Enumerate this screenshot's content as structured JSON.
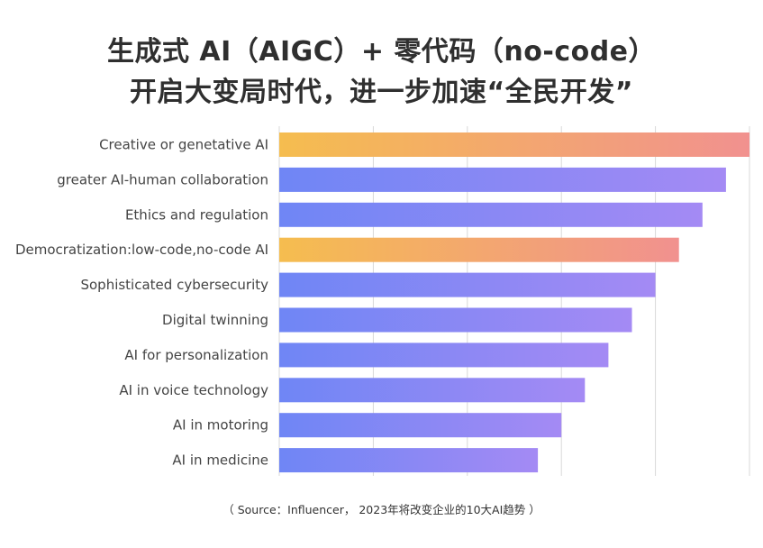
{
  "title_lines": [
    "生成式 AI（AIGC）+ 零代码（no-code）",
    "开启大变局时代，进一步加速“全民开发”"
  ],
  "source": "（ Source：Influencer， 2023年将改变企业的10大AI趋势 ）",
  "colors": {
    "highlight_start": "#f5bd4f",
    "highlight_end": "#f1918f",
    "normal_start": "#6f86f5",
    "normal_end": "#a48af4",
    "gridline": "#d9d9d9"
  },
  "chart_data": {
    "type": "bar",
    "orientation": "horizontal",
    "categories": [
      "Creative or genetative AI",
      "greater AI-human collaboration",
      "Ethics and regulation",
      "Democratization:low-code,no-code AI",
      "Sophisticated cybersecurity",
      "Digital twinning",
      "AI for personalization",
      "AI in voice technology",
      "AI in motoring",
      "AI in medicine"
    ],
    "values": [
      10,
      9.5,
      9,
      8.5,
      8,
      7.5,
      7,
      6.5,
      6,
      5.5
    ],
    "highlighted": [
      true,
      false,
      false,
      true,
      false,
      false,
      false,
      false,
      false,
      false
    ],
    "xlim": [
      0,
      10
    ],
    "x_gridlines": [
      0,
      2,
      4,
      6,
      8,
      10
    ],
    "grid": true,
    "tick_labels_shown": false,
    "title": "",
    "xlabel": "",
    "ylabel": ""
  }
}
